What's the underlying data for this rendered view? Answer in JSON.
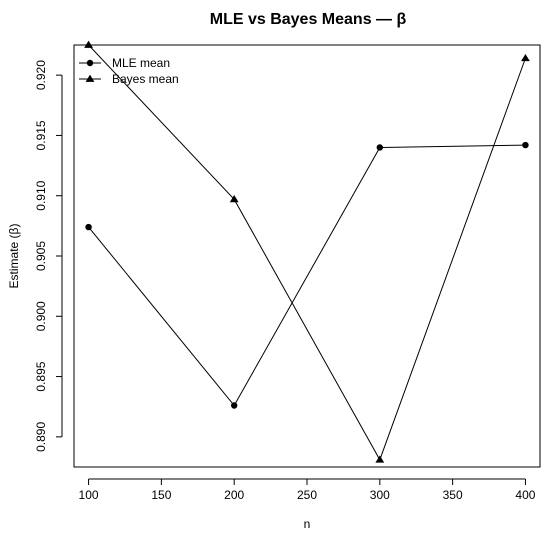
{
  "chart_data": {
    "type": "line",
    "title": "MLE vs Bayes Means — β",
    "xlabel": "n",
    "ylabel": "Estimate (β)",
    "x": [
      100,
      200,
      300,
      400
    ],
    "xlim": [
      90,
      410
    ],
    "ylim": [
      0.8875,
      0.9225
    ],
    "xticks": [
      100,
      150,
      200,
      250,
      300,
      350,
      400
    ],
    "xtick_labels": [
      "100",
      "150",
      "200",
      "250",
      "300",
      "350",
      "400"
    ],
    "yticks": [
      0.89,
      0.895,
      0.9,
      0.905,
      0.91,
      0.915,
      0.92
    ],
    "ytick_labels": [
      "0.890",
      "0.895",
      "0.900",
      "0.905",
      "0.910",
      "0.915",
      "0.920"
    ],
    "series": [
      {
        "name": "MLE mean",
        "marker": "circle",
        "values": [
          0.9074,
          0.8926,
          0.914,
          0.9142
        ]
      },
      {
        "name": "Bayes mean",
        "marker": "triangle",
        "values": [
          0.9225,
          0.9097,
          0.8881,
          0.9214
        ]
      }
    ],
    "legend_position": "top-left",
    "grid": false,
    "colors": {
      "axis": "#000000",
      "series": "#000000",
      "background": "#ffffff"
    }
  }
}
